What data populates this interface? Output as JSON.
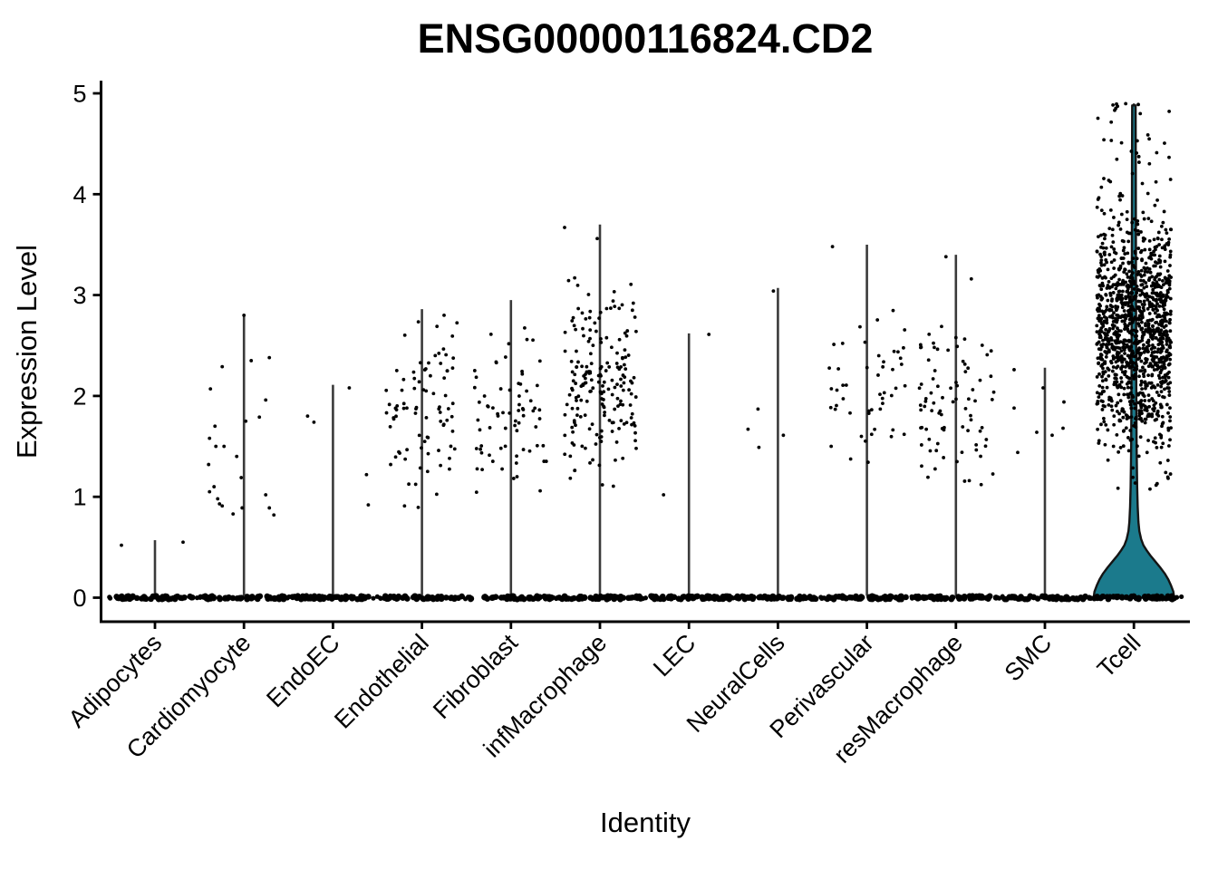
{
  "chart_data": {
    "type": "violin",
    "title": "ENSG00000116824.CD2",
    "xlabel": "Identity",
    "ylabel": "Expression Level",
    "ylim": [
      0,
      5
    ],
    "yticks": [
      0,
      1,
      2,
      3,
      4,
      5
    ],
    "legend": "none",
    "grid": false,
    "x_label_angle": 45,
    "colors": {
      "violin_fill": "#1B7A8C",
      "violin_outline": "#141414",
      "point": "#000000",
      "stem": "#3A3A3A",
      "axis": "#000000"
    },
    "description": "Jittered expression points per identity; nearly all cells at 0 form a solid black bar; Tcell shows a filled teal violin at the base.",
    "categories": [
      {
        "label": "Adipocytes",
        "stem_top": 0.57,
        "points": [
          [
            0.55,
            31
          ],
          [
            0.52,
            -37
          ]
        ]
      },
      {
        "label": "Cardiomyocyte",
        "stem_top": 2.81,
        "points": [
          [
            2.8,
            0
          ],
          [
            2.38,
            28
          ],
          [
            2.35,
            8
          ],
          [
            2.29,
            -24
          ],
          [
            2.07,
            -37
          ],
          [
            1.96,
            24
          ],
          [
            1.79,
            17
          ],
          [
            1.75,
            2
          ],
          [
            1.7,
            -32
          ],
          [
            1.58,
            -38
          ],
          [
            1.5,
            -31
          ],
          [
            1.5,
            -22
          ],
          [
            1.4,
            -8
          ],
          [
            1.32,
            -39
          ],
          [
            1.19,
            -3
          ],
          [
            1.1,
            -33
          ],
          [
            1.05,
            -38
          ],
          [
            1.02,
            24
          ],
          [
            0.98,
            -29
          ],
          [
            0.93,
            -27
          ],
          [
            0.91,
            -24
          ],
          [
            0.89,
            -2
          ],
          [
            0.89,
            28
          ],
          [
            0.83,
            -12
          ],
          [
            0.82,
            33
          ]
        ]
      },
      {
        "label": "EndoEC",
        "stem_top": 2.11,
        "points": [
          [
            2.08,
            18
          ],
          [
            1.8,
            -28
          ],
          [
            1.74,
            -21
          ],
          [
            1.22,
            37
          ],
          [
            0.92,
            39
          ]
        ]
      },
      {
        "label": "Endothelial",
        "stem_top": 2.86,
        "cloud": {
          "n": 85,
          "mean": 1.88,
          "sd": 0.5,
          "min": 0.85,
          "max": 2.88,
          "jitter": 40
        }
      },
      {
        "label": "Fibroblast",
        "stem_top": 2.95,
        "cloud": {
          "n": 72,
          "mean": 1.82,
          "sd": 0.5,
          "min": 0.95,
          "max": 2.95,
          "jitter": 40
        }
      },
      {
        "label": "infMacrophage",
        "stem_top": 3.7,
        "cloud": {
          "n": 195,
          "mean": 2.1,
          "sd": 0.5,
          "min": 1.0,
          "max": 3.22,
          "jitter": 40
        },
        "points": [
          [
            3.67,
            -39
          ],
          [
            3.56,
            -3
          ]
        ]
      },
      {
        "label": "LEC",
        "stem_top": 2.62,
        "points": [
          [
            2.61,
            22
          ],
          [
            1.02,
            -28
          ]
        ]
      },
      {
        "label": "NeuralCells",
        "stem_top": 3.07,
        "points": [
          [
            3.04,
            -5
          ],
          [
            1.87,
            -22
          ],
          [
            1.67,
            -33
          ],
          [
            1.61,
            6
          ],
          [
            1.49,
            -21
          ]
        ]
      },
      {
        "label": "Perivascular",
        "stem_top": 3.5,
        "cloud": {
          "n": 50,
          "mean": 2.05,
          "sd": 0.44,
          "min": 1.24,
          "max": 3.0,
          "jitter": 44
        },
        "points": [
          [
            3.48,
            -38
          ]
        ]
      },
      {
        "label": "resMacrophage",
        "stem_top": 3.4,
        "cloud": {
          "n": 82,
          "mean": 1.92,
          "sd": 0.45,
          "min": 0.98,
          "max": 2.85,
          "jitter": 42
        },
        "points": [
          [
            3.38,
            -11
          ],
          [
            3.16,
            17
          ]
        ]
      },
      {
        "label": "SMC",
        "stem_top": 2.28,
        "points": [
          [
            2.26,
            -34
          ],
          [
            2.08,
            -2
          ],
          [
            1.94,
            21
          ],
          [
            1.88,
            -34
          ],
          [
            1.68,
            20
          ],
          [
            1.64,
            -9
          ],
          [
            1.61,
            8
          ],
          [
            1.44,
            -30
          ]
        ]
      },
      {
        "label": "Tcell",
        "stem_top": 4.9,
        "cloud": {
          "n": 1250,
          "mean": 2.65,
          "sd": 0.58,
          "min": 1.05,
          "max": 4.35,
          "jitter": 41
        },
        "extra_cloud": {
          "n": 26,
          "min": 4.2,
          "max": 4.92,
          "jitter": 40
        },
        "violin_profile": [
          [
            0,
            44.5
          ],
          [
            0.06,
            43.5
          ],
          [
            0.12,
            41
          ],
          [
            0.18,
            38
          ],
          [
            0.24,
            34
          ],
          [
            0.3,
            29
          ],
          [
            0.36,
            23.5
          ],
          [
            0.42,
            18
          ],
          [
            0.47,
            14
          ],
          [
            0.52,
            10.5
          ],
          [
            0.58,
            8
          ],
          [
            0.66,
            6
          ],
          [
            0.75,
            5
          ],
          [
            0.9,
            4.2
          ],
          [
            1.1,
            3.6
          ],
          [
            1.5,
            3.0
          ],
          [
            2.2,
            2.6
          ],
          [
            3.2,
            2.3
          ],
          [
            4.2,
            2.1
          ],
          [
            4.88,
            1.9
          ]
        ]
      }
    ],
    "zero_bar": {
      "half_width": 45,
      "dot_r": 3.3,
      "n_dots": 55
    }
  }
}
